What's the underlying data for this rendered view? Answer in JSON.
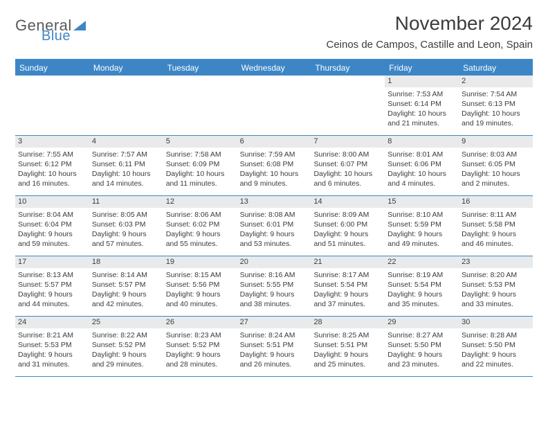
{
  "logo": {
    "general": "General",
    "blue": "Blue"
  },
  "title": "November 2024",
  "location": "Ceinos de Campos, Castille and Leon, Spain",
  "colors": {
    "accent": "#3d86c6",
    "header_row_bg": "#e9eaeb",
    "text": "#3b3b3b",
    "bg": "#ffffff"
  },
  "day_names": [
    "Sunday",
    "Monday",
    "Tuesday",
    "Wednesday",
    "Thursday",
    "Friday",
    "Saturday"
  ],
  "weeks": [
    [
      {
        "num": "",
        "sunrise": "",
        "sunset": "",
        "daylight": ""
      },
      {
        "num": "",
        "sunrise": "",
        "sunset": "",
        "daylight": ""
      },
      {
        "num": "",
        "sunrise": "",
        "sunset": "",
        "daylight": ""
      },
      {
        "num": "",
        "sunrise": "",
        "sunset": "",
        "daylight": ""
      },
      {
        "num": "",
        "sunrise": "",
        "sunset": "",
        "daylight": ""
      },
      {
        "num": "1",
        "sunrise": "Sunrise: 7:53 AM",
        "sunset": "Sunset: 6:14 PM",
        "daylight": "Daylight: 10 hours and 21 minutes."
      },
      {
        "num": "2",
        "sunrise": "Sunrise: 7:54 AM",
        "sunset": "Sunset: 6:13 PM",
        "daylight": "Daylight: 10 hours and 19 minutes."
      }
    ],
    [
      {
        "num": "3",
        "sunrise": "Sunrise: 7:55 AM",
        "sunset": "Sunset: 6:12 PM",
        "daylight": "Daylight: 10 hours and 16 minutes."
      },
      {
        "num": "4",
        "sunrise": "Sunrise: 7:57 AM",
        "sunset": "Sunset: 6:11 PM",
        "daylight": "Daylight: 10 hours and 14 minutes."
      },
      {
        "num": "5",
        "sunrise": "Sunrise: 7:58 AM",
        "sunset": "Sunset: 6:09 PM",
        "daylight": "Daylight: 10 hours and 11 minutes."
      },
      {
        "num": "6",
        "sunrise": "Sunrise: 7:59 AM",
        "sunset": "Sunset: 6:08 PM",
        "daylight": "Daylight: 10 hours and 9 minutes."
      },
      {
        "num": "7",
        "sunrise": "Sunrise: 8:00 AM",
        "sunset": "Sunset: 6:07 PM",
        "daylight": "Daylight: 10 hours and 6 minutes."
      },
      {
        "num": "8",
        "sunrise": "Sunrise: 8:01 AM",
        "sunset": "Sunset: 6:06 PM",
        "daylight": "Daylight: 10 hours and 4 minutes."
      },
      {
        "num": "9",
        "sunrise": "Sunrise: 8:03 AM",
        "sunset": "Sunset: 6:05 PM",
        "daylight": "Daylight: 10 hours and 2 minutes."
      }
    ],
    [
      {
        "num": "10",
        "sunrise": "Sunrise: 8:04 AM",
        "sunset": "Sunset: 6:04 PM",
        "daylight": "Daylight: 9 hours and 59 minutes."
      },
      {
        "num": "11",
        "sunrise": "Sunrise: 8:05 AM",
        "sunset": "Sunset: 6:03 PM",
        "daylight": "Daylight: 9 hours and 57 minutes."
      },
      {
        "num": "12",
        "sunrise": "Sunrise: 8:06 AM",
        "sunset": "Sunset: 6:02 PM",
        "daylight": "Daylight: 9 hours and 55 minutes."
      },
      {
        "num": "13",
        "sunrise": "Sunrise: 8:08 AM",
        "sunset": "Sunset: 6:01 PM",
        "daylight": "Daylight: 9 hours and 53 minutes."
      },
      {
        "num": "14",
        "sunrise": "Sunrise: 8:09 AM",
        "sunset": "Sunset: 6:00 PM",
        "daylight": "Daylight: 9 hours and 51 minutes."
      },
      {
        "num": "15",
        "sunrise": "Sunrise: 8:10 AM",
        "sunset": "Sunset: 5:59 PM",
        "daylight": "Daylight: 9 hours and 49 minutes."
      },
      {
        "num": "16",
        "sunrise": "Sunrise: 8:11 AM",
        "sunset": "Sunset: 5:58 PM",
        "daylight": "Daylight: 9 hours and 46 minutes."
      }
    ],
    [
      {
        "num": "17",
        "sunrise": "Sunrise: 8:13 AM",
        "sunset": "Sunset: 5:57 PM",
        "daylight": "Daylight: 9 hours and 44 minutes."
      },
      {
        "num": "18",
        "sunrise": "Sunrise: 8:14 AM",
        "sunset": "Sunset: 5:57 PM",
        "daylight": "Daylight: 9 hours and 42 minutes."
      },
      {
        "num": "19",
        "sunrise": "Sunrise: 8:15 AM",
        "sunset": "Sunset: 5:56 PM",
        "daylight": "Daylight: 9 hours and 40 minutes."
      },
      {
        "num": "20",
        "sunrise": "Sunrise: 8:16 AM",
        "sunset": "Sunset: 5:55 PM",
        "daylight": "Daylight: 9 hours and 38 minutes."
      },
      {
        "num": "21",
        "sunrise": "Sunrise: 8:17 AM",
        "sunset": "Sunset: 5:54 PM",
        "daylight": "Daylight: 9 hours and 37 minutes."
      },
      {
        "num": "22",
        "sunrise": "Sunrise: 8:19 AM",
        "sunset": "Sunset: 5:54 PM",
        "daylight": "Daylight: 9 hours and 35 minutes."
      },
      {
        "num": "23",
        "sunrise": "Sunrise: 8:20 AM",
        "sunset": "Sunset: 5:53 PM",
        "daylight": "Daylight: 9 hours and 33 minutes."
      }
    ],
    [
      {
        "num": "24",
        "sunrise": "Sunrise: 8:21 AM",
        "sunset": "Sunset: 5:53 PM",
        "daylight": "Daylight: 9 hours and 31 minutes."
      },
      {
        "num": "25",
        "sunrise": "Sunrise: 8:22 AM",
        "sunset": "Sunset: 5:52 PM",
        "daylight": "Daylight: 9 hours and 29 minutes."
      },
      {
        "num": "26",
        "sunrise": "Sunrise: 8:23 AM",
        "sunset": "Sunset: 5:52 PM",
        "daylight": "Daylight: 9 hours and 28 minutes."
      },
      {
        "num": "27",
        "sunrise": "Sunrise: 8:24 AM",
        "sunset": "Sunset: 5:51 PM",
        "daylight": "Daylight: 9 hours and 26 minutes."
      },
      {
        "num": "28",
        "sunrise": "Sunrise: 8:25 AM",
        "sunset": "Sunset: 5:51 PM",
        "daylight": "Daylight: 9 hours and 25 minutes."
      },
      {
        "num": "29",
        "sunrise": "Sunrise: 8:27 AM",
        "sunset": "Sunset: 5:50 PM",
        "daylight": "Daylight: 9 hours and 23 minutes."
      },
      {
        "num": "30",
        "sunrise": "Sunrise: 8:28 AM",
        "sunset": "Sunset: 5:50 PM",
        "daylight": "Daylight: 9 hours and 22 minutes."
      }
    ]
  ]
}
